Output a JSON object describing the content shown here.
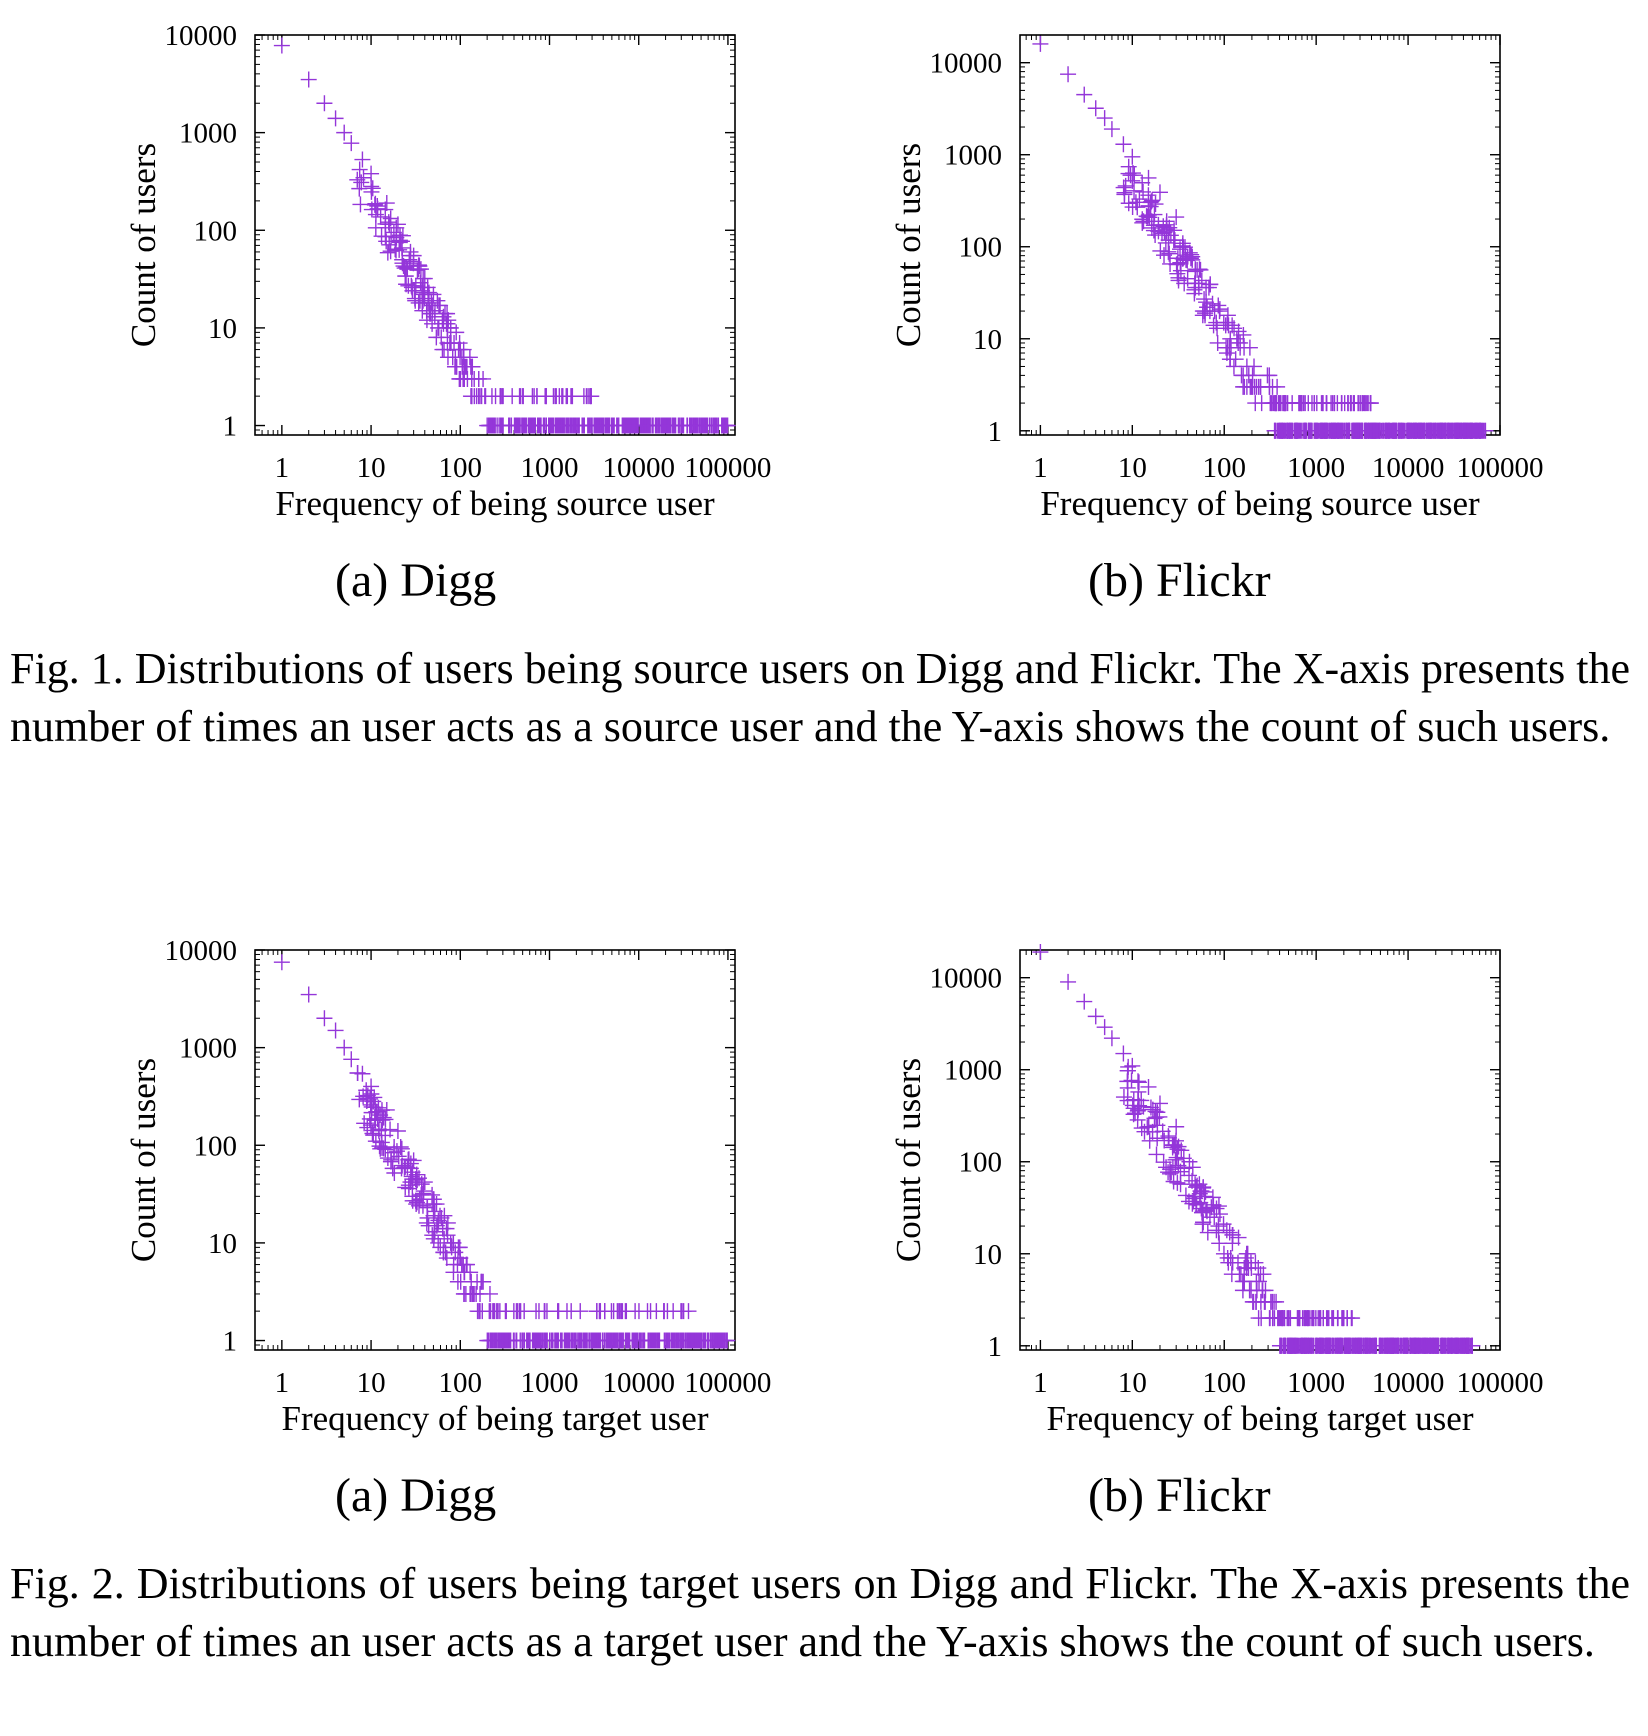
{
  "colors": {
    "marker": "#9436d9",
    "frame": "#000000"
  },
  "figures": [
    {
      "caption": "Fig. 1.   Distributions of users being source users on Digg and Flickr. The X-axis presents the number of times an user acts as a source user and the Y-axis shows the count of such users.",
      "panels": [
        {
          "subcaption": "(a)  Digg"
        },
        {
          "subcaption": "(b)  Flickr"
        }
      ]
    },
    {
      "caption": "Fig. 2.   Distributions of users being target users on Digg and Flickr. The X-axis presents the number of times an user acts as a target user and the Y-axis shows the count of such users.",
      "panels": [
        {
          "subcaption": "(a)  Digg"
        },
        {
          "subcaption": "(b)  Flickr"
        }
      ]
    }
  ],
  "chart_data": [
    {
      "type": "scatter",
      "marker": "+",
      "xscale": "log",
      "yscale": "log",
      "xlabel": "Frequency of being source user",
      "ylabel": "Count of users",
      "xlim": [
        0.5,
        120000
      ],
      "ylim": [
        0.8,
        10000
      ],
      "xticks": [
        "1",
        "10",
        "100",
        "1000",
        "10000",
        "100000"
      ],
      "yticks": [
        "1",
        "10",
        "100",
        "1000",
        "10000"
      ],
      "head": {
        "x": [
          1,
          2,
          3,
          4,
          5,
          6,
          8,
          10,
          15,
          20,
          30,
          40,
          50,
          70,
          100
        ],
        "y": [
          7800,
          3500,
          2000,
          1400,
          1000,
          780,
          530,
          380,
          190,
          115,
          55,
          32,
          22,
          11,
          6
        ]
      },
      "power_law": {
        "x_start": 1,
        "y_start": 7800,
        "slope": -1.6,
        "x_min": 7,
        "x_max": 400,
        "y_floor": 2,
        "spread": 0.45
      },
      "tail_y2": {
        "x_min": 120,
        "x_max": 3000,
        "count": 45
      },
      "tail_y1": {
        "x_min": 200,
        "x_max": 100000,
        "count": 380
      }
    },
    {
      "type": "scatter",
      "marker": "+",
      "xscale": "log",
      "yscale": "log",
      "xlabel": "Frequency of being source user",
      "ylabel": "Count of users",
      "xlim": [
        0.6,
        100000
      ],
      "ylim": [
        0.9,
        20000
      ],
      "xticks": [
        "1",
        "10",
        "100",
        "1000",
        "10000",
        "100000"
      ],
      "yticks": [
        "1",
        "10",
        "100",
        "1000",
        "10000"
      ],
      "head": {
        "x": [
          1,
          2,
          3,
          4,
          5,
          6,
          8,
          10,
          15,
          20,
          30
        ],
        "y": [
          16000,
          7500,
          4500,
          3200,
          2500,
          1900,
          1300,
          950,
          560,
          390,
          210
        ]
      },
      "power_law": {
        "x_start": 1,
        "y_start": 16000,
        "slope": -1.55,
        "x_min": 8,
        "x_max": 900,
        "y_floor": 2,
        "spread": 0.5
      },
      "tail_y2": {
        "x_min": 300,
        "x_max": 4000,
        "count": 70
      },
      "tail_y1": {
        "x_min": 350,
        "x_max": 70000,
        "count": 520
      }
    },
    {
      "type": "scatter",
      "marker": "+",
      "xscale": "log",
      "yscale": "log",
      "xlabel": "Frequency of being target user",
      "ylabel": "Count of users",
      "xlim": [
        0.5,
        120000
      ],
      "ylim": [
        0.8,
        10000
      ],
      "xticks": [
        "1",
        "10",
        "100",
        "1000",
        "10000",
        "100000"
      ],
      "yticks": [
        "1",
        "10",
        "100",
        "1000",
        "10000"
      ],
      "head": {
        "x": [
          1,
          2,
          3,
          4,
          5,
          6,
          8,
          10,
          15,
          20,
          30,
          40,
          50,
          70,
          100
        ],
        "y": [
          7500,
          3500,
          2000,
          1500,
          1000,
          760,
          540,
          400,
          230,
          140,
          70,
          42,
          28,
          14,
          7
        ]
      },
      "power_law": {
        "x_start": 1,
        "y_start": 7500,
        "slope": -1.55,
        "x_min": 7,
        "x_max": 500,
        "y_floor": 2,
        "spread": 0.45
      },
      "tail_y2": {
        "x_min": 150,
        "x_max": 40000,
        "count": 55
      },
      "tail_y1": {
        "x_min": 200,
        "x_max": 100000,
        "count": 380
      }
    },
    {
      "type": "scatter",
      "marker": "+",
      "xscale": "log",
      "yscale": "log",
      "xlabel": "Frequency of being target user",
      "ylabel": "Count of users",
      "xlim": [
        0.6,
        100000
      ],
      "ylim": [
        0.9,
        20000
      ],
      "xticks": [
        "1",
        "10",
        "100",
        "1000",
        "10000",
        "100000"
      ],
      "yticks": [
        "1",
        "10",
        "100",
        "1000",
        "10000"
      ],
      "head": {
        "x": [
          1,
          2,
          3,
          4,
          5,
          6,
          8,
          10,
          15,
          20,
          30
        ],
        "y": [
          19000,
          9000,
          5500,
          3800,
          2900,
          2200,
          1500,
          1100,
          650,
          430,
          240
        ]
      },
      "power_law": {
        "x_start": 1,
        "y_start": 19000,
        "slope": -1.55,
        "x_min": 8,
        "x_max": 900,
        "y_floor": 2,
        "spread": 0.5
      },
      "tail_y2": {
        "x_min": 300,
        "x_max": 3000,
        "count": 55
      },
      "tail_y1": {
        "x_min": 400,
        "x_max": 50000,
        "count": 480
      }
    }
  ]
}
